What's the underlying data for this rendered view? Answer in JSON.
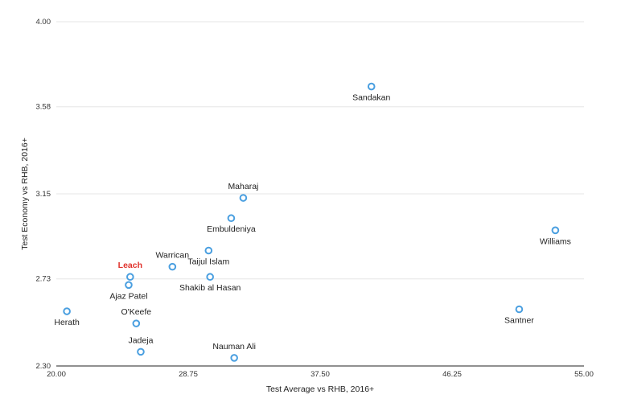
{
  "chart_data": {
    "type": "scatter",
    "xlabel": "Test Average vs RHB, 2016+",
    "ylabel": "Test Economy vs RHB, 2016+",
    "xlim": [
      20.0,
      55.0
    ],
    "ylim": [
      2.3,
      4.0
    ],
    "xticks": [
      "20.00",
      "28.75",
      "37.50",
      "46.25",
      "55.00"
    ],
    "yticks": [
      "2.30",
      "2.73",
      "3.15",
      "3.58",
      "4.00"
    ],
    "grid": "horizontal",
    "marker_color": "#4a9fe0",
    "highlight_color": "#e0312b",
    "points": [
      {
        "label": "Sandakan",
        "x": 40.9,
        "y": 3.68,
        "label_pos": "below"
      },
      {
        "label": "Maharaj",
        "x": 32.4,
        "y": 3.13,
        "label_pos": "above"
      },
      {
        "label": "Embuldeniya",
        "x": 31.6,
        "y": 3.03,
        "label_pos": "below"
      },
      {
        "label": "Williams",
        "x": 53.1,
        "y": 2.97,
        "label_pos": "below"
      },
      {
        "label": "Taijul Islam",
        "x": 30.1,
        "y": 2.87,
        "label_pos": "below"
      },
      {
        "label": "Warrican",
        "x": 27.7,
        "y": 2.79,
        "label_pos": "above"
      },
      {
        "label": "Leach",
        "x": 24.9,
        "y": 2.74,
        "label_pos": "above",
        "highlight": true
      },
      {
        "label": "Shakib al Hasan",
        "x": 30.2,
        "y": 2.74,
        "label_pos": "below"
      },
      {
        "label": "Ajaz Patel",
        "x": 24.8,
        "y": 2.7,
        "label_pos": "below"
      },
      {
        "label": "Herath",
        "x": 20.7,
        "y": 2.57,
        "label_pos": "below"
      },
      {
        "label": "Santner",
        "x": 50.7,
        "y": 2.58,
        "label_pos": "below"
      },
      {
        "label": "O'Keefe",
        "x": 25.3,
        "y": 2.51,
        "label_pos": "above"
      },
      {
        "label": "Jadeja",
        "x": 25.6,
        "y": 2.37,
        "label_pos": "above"
      },
      {
        "label": "Nauman Ali",
        "x": 31.8,
        "y": 2.34,
        "label_pos": "above"
      }
    ]
  }
}
